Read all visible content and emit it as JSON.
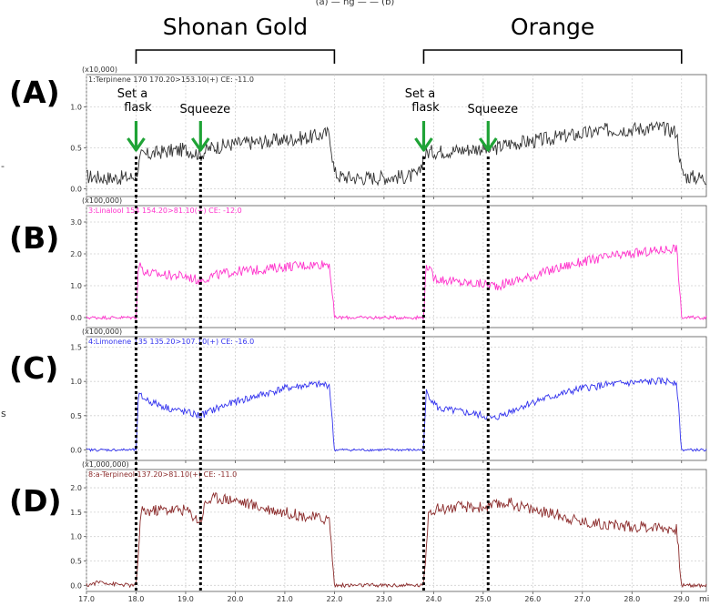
{
  "top_caption": "(a) — ng — — (b)",
  "groups": [
    {
      "label": "Shonan Gold",
      "x_start": 18.0,
      "x_end": 22.0
    },
    {
      "label": "Orange",
      "x_start": 23.8,
      "x_end": 29.0
    }
  ],
  "annotations": [
    {
      "label": "Set a flask",
      "x": 18.0,
      "color": "#1fa336"
    },
    {
      "label": "Squeeze",
      "x": 19.3,
      "color": "#1fa336"
    },
    {
      "label": "Set a flask",
      "x": 23.8,
      "color": "#1fa336"
    },
    {
      "label": "Squeeze",
      "x": 25.1,
      "color": "#1fa336"
    }
  ],
  "side_labels": [
    "-",
    "s"
  ],
  "x_unit_label": "mi",
  "chart_data": [
    {
      "type": "line",
      "panel": "(A)",
      "multiplier": "(x10,000)",
      "trace_label": "1:Terpinene 170 170.20>153.10(+) CE: -11.0",
      "color": "#333333",
      "xlim": [
        17.0,
        29.5
      ],
      "ylim": [
        -0.05,
        1.35
      ],
      "xticks": [
        "17.0",
        "18.0",
        "19.0",
        "20.0",
        "21.0",
        "22.0",
        "23.0",
        "24.0",
        "25.0",
        "26.0",
        "27.0",
        "28.0",
        "29.0"
      ],
      "yticks": [
        "0.0",
        "0.5",
        "1.0"
      ],
      "x": [
        17.0,
        17.5,
        17.9,
        18.0,
        18.1,
        18.5,
        19.0,
        19.3,
        19.5,
        20.0,
        20.5,
        21.0,
        21.5,
        21.9,
        22.0,
        22.1,
        22.5,
        23.0,
        23.5,
        23.7,
        23.8,
        23.9,
        24.5,
        25.0,
        25.1,
        25.5,
        26.0,
        26.5,
        27.0,
        27.5,
        28.0,
        28.5,
        28.9,
        29.0,
        29.1,
        29.5
      ],
      "y": [
        0.15,
        0.13,
        0.14,
        0.17,
        0.4,
        0.45,
        0.48,
        0.42,
        0.5,
        0.55,
        0.57,
        0.6,
        0.63,
        0.68,
        0.2,
        0.15,
        0.13,
        0.14,
        0.15,
        0.17,
        0.4,
        0.45,
        0.47,
        0.5,
        0.46,
        0.55,
        0.58,
        0.63,
        0.67,
        0.72,
        0.73,
        0.75,
        0.7,
        0.2,
        0.15,
        0.13
      ]
    },
    {
      "type": "line",
      "panel": "(B)",
      "multiplier": "(x100,000)",
      "trace_label": "3:Linalool 154 154.20>81.10(+) CE: -12.0",
      "color": "#ff33cc",
      "xlim": [
        17.0,
        29.5
      ],
      "ylim": [
        -0.2,
        3.4
      ],
      "xticks": [
        "17.0",
        "18.0",
        "19.0",
        "20.0",
        "21.0",
        "22.0",
        "23.0",
        "24.0",
        "25.0",
        "26.0",
        "27.0",
        "28.0",
        "29.0"
      ],
      "yticks": [
        "0.0",
        "1.0",
        "2.0",
        "3.0"
      ],
      "x": [
        17.0,
        17.9,
        18.0,
        18.05,
        18.2,
        18.5,
        19.0,
        19.3,
        19.5,
        20.0,
        20.5,
        21.0,
        21.5,
        21.9,
        22.0,
        22.1,
        23.0,
        23.7,
        23.8,
        23.85,
        24.0,
        24.5,
        25.0,
        25.3,
        25.5,
        26.0,
        26.5,
        27.0,
        27.5,
        28.0,
        28.5,
        28.9,
        29.0,
        29.1,
        29.5
      ],
      "y": [
        0.0,
        0.0,
        0.0,
        1.7,
        1.4,
        1.35,
        1.3,
        1.15,
        1.3,
        1.45,
        1.5,
        1.6,
        1.65,
        1.7,
        0.0,
        0.0,
        0.0,
        0.0,
        0.0,
        1.7,
        1.25,
        1.1,
        1.05,
        1.0,
        1.1,
        1.3,
        1.55,
        1.75,
        1.9,
        2.0,
        2.1,
        2.2,
        0.0,
        0.0,
        0.0
      ]
    },
    {
      "type": "line",
      "panel": "(C)",
      "multiplier": "(x100,000)",
      "trace_label": "4:Limonene 135 135.20>107.10(+) CE: -16.0",
      "color": "#3333ee",
      "xlim": [
        17.0,
        29.5
      ],
      "ylim": [
        -0.1,
        1.6
      ],
      "xticks": [
        "17.0",
        "18.0",
        "19.0",
        "20.0",
        "21.0",
        "22.0",
        "23.0",
        "24.0",
        "25.0",
        "26.0",
        "27.0",
        "28.0",
        "29.0"
      ],
      "yticks": [
        "0.0",
        "0.5",
        "1.0",
        "1.5"
      ],
      "x": [
        17.0,
        17.9,
        18.0,
        18.05,
        18.3,
        18.7,
        19.0,
        19.3,
        19.6,
        20.0,
        20.5,
        21.0,
        21.5,
        21.9,
        22.0,
        22.1,
        23.0,
        23.7,
        23.8,
        23.85,
        24.1,
        24.6,
        25.0,
        25.2,
        25.5,
        26.0,
        26.5,
        27.0,
        27.5,
        28.0,
        28.5,
        28.9,
        29.0,
        29.1,
        29.5
      ],
      "y": [
        0.0,
        0.0,
        0.0,
        0.8,
        0.7,
        0.6,
        0.55,
        0.5,
        0.6,
        0.7,
        0.8,
        0.9,
        0.95,
        0.95,
        0.0,
        0.0,
        0.0,
        0.0,
        0.0,
        0.85,
        0.6,
        0.55,
        0.5,
        0.45,
        0.55,
        0.7,
        0.8,
        0.9,
        0.95,
        0.98,
        1.0,
        1.0,
        0.0,
        0.0,
        0.0
      ]
    },
    {
      "type": "line",
      "panel": "(D)",
      "multiplier": "(x1,000,000)",
      "trace_label": "8:a-Terpineol 137.20>81.10(+) CE: -11.0",
      "color": "#8b2b2b",
      "xlim": [
        17.0,
        29.5
      ],
      "ylim": [
        -0.05,
        2.3
      ],
      "xticks": [
        "17.0",
        "18.0",
        "19.0",
        "20.0",
        "21.0",
        "22.0",
        "23.0",
        "24.0",
        "25.0",
        "26.0",
        "27.0",
        "28.0",
        "29.0"
      ],
      "yticks": [
        "0.0",
        "0.5",
        "1.0",
        "1.5",
        "2.0"
      ],
      "x": [
        17.0,
        17.3,
        17.5,
        17.9,
        18.0,
        18.1,
        18.5,
        19.0,
        19.3,
        19.4,
        19.6,
        20.0,
        20.5,
        21.0,
        21.5,
        21.9,
        22.0,
        22.1,
        23.0,
        23.7,
        23.8,
        23.9,
        24.5,
        25.0,
        25.3,
        25.5,
        26.0,
        26.5,
        27.0,
        27.5,
        28.0,
        28.5,
        28.9,
        29.0,
        29.1,
        29.5
      ],
      "y": [
        0.0,
        0.08,
        0.03,
        0.0,
        0.0,
        1.5,
        1.55,
        1.55,
        1.3,
        1.7,
        1.8,
        1.75,
        1.6,
        1.5,
        1.4,
        1.35,
        0.0,
        0.0,
        0.0,
        0.0,
        0.0,
        1.55,
        1.6,
        1.6,
        1.65,
        1.7,
        1.55,
        1.45,
        1.3,
        1.25,
        1.2,
        1.2,
        1.15,
        0.0,
        0.0,
        0.0
      ]
    }
  ]
}
